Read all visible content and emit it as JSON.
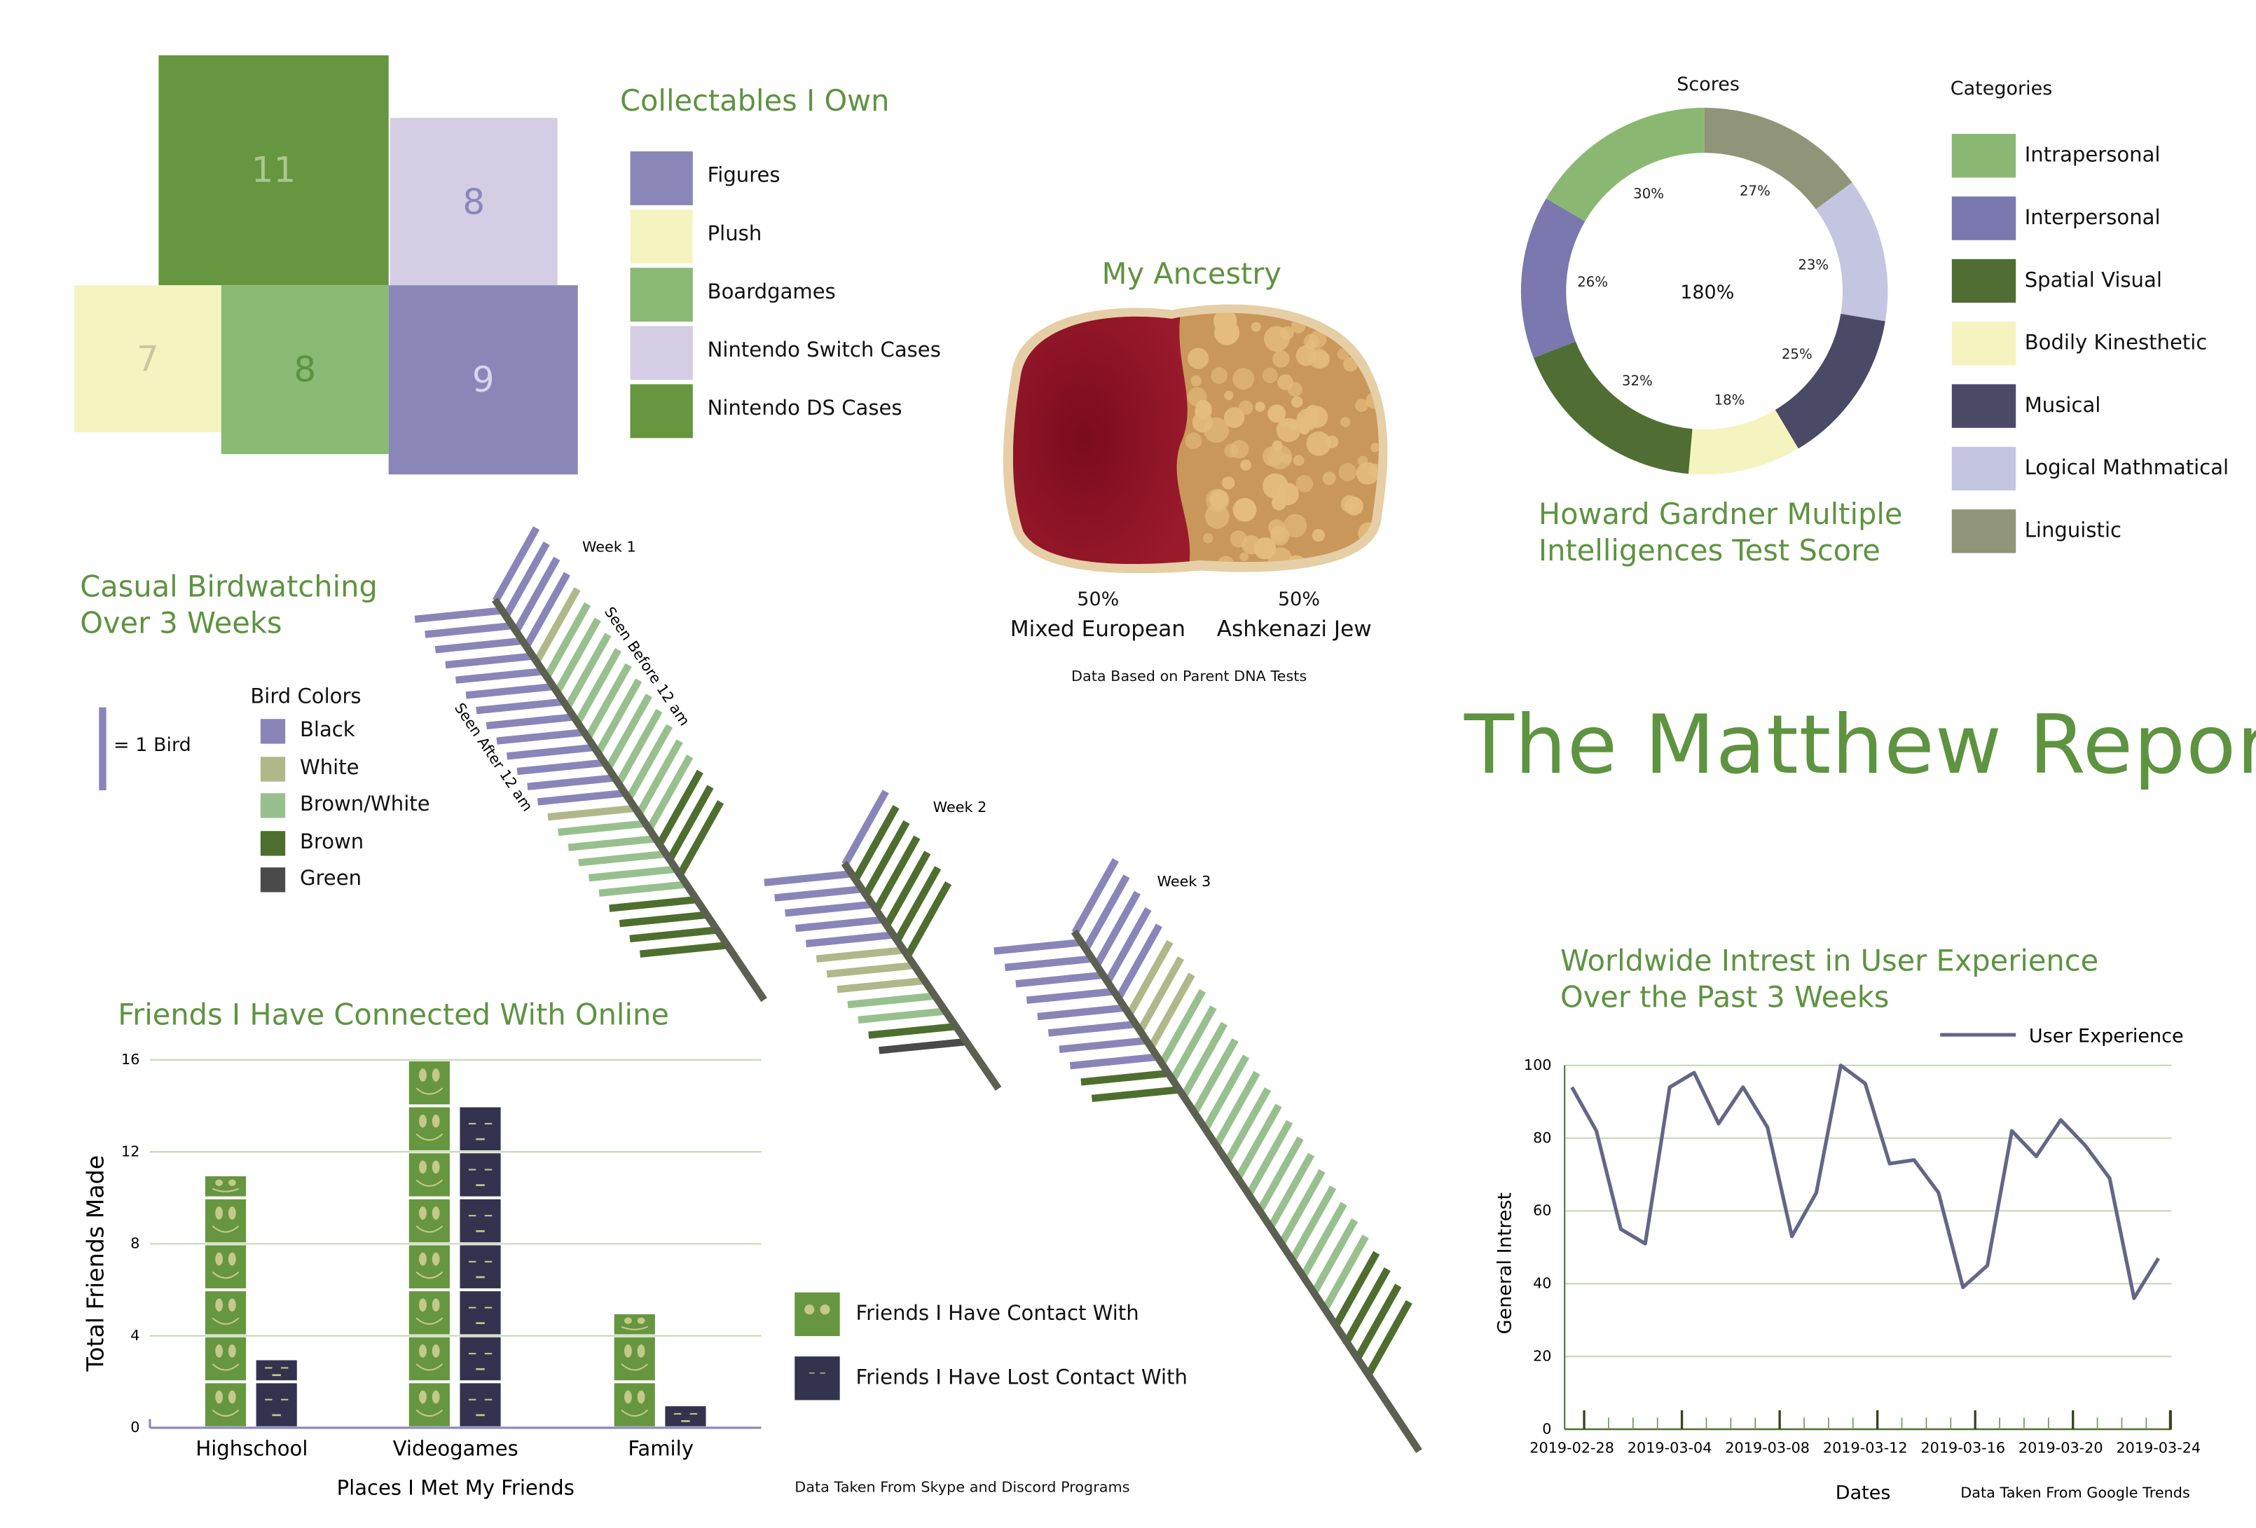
{
  "report_title": "The Matthew Report",
  "chart_data": [
    {
      "type": "treemap",
      "title": "Collectables I Own",
      "items": [
        {
          "label": "Figures",
          "value": 9,
          "color": "#8a87b8",
          "text_color": "#d6d6ee"
        },
        {
          "label": "Plush",
          "value": 7,
          "color": "#f5f4c0",
          "text_color": "#c9c79f"
        },
        {
          "label": "Boardgames",
          "value": 8,
          "color": "#8aba73",
          "text_color": "#5c9240"
        },
        {
          "label": "Nintendo Switch Cases",
          "value": 8,
          "color": "#d5cde3",
          "text_color": "#8a87b8"
        },
        {
          "label": "Nintendo DS Cases",
          "value": 11,
          "color": "#66963f",
          "text_color": "#a9c98f"
        }
      ]
    },
    {
      "type": "image-split",
      "title": "My Ancestry",
      "items": [
        {
          "percent": "50%",
          "label": "Mixed European"
        },
        {
          "percent": "50%",
          "label": "Ashkenazi Jew"
        }
      ],
      "note": "Data Based on Parent DNA Tests"
    },
    {
      "type": "pie",
      "title": "Howard Gardner Multiple Intelligences Test Score",
      "series_title": "Scores",
      "legend_title": "Categories",
      "center_label": "180%",
      "legend": [
        {
          "label": "Intrapersonal",
          "color": "#8ab873"
        },
        {
          "label": "Interpersonal",
          "color": "#7a78ae"
        },
        {
          "label": "Spatial Visual",
          "color": "#506e33"
        },
        {
          "label": "Bodily Kinesthetic",
          "color": "#f5f4c0"
        },
        {
          "label": "Musical",
          "color": "#4a4a66"
        },
        {
          "label": "Logical Mathmatical",
          "color": "#c4c5e1"
        },
        {
          "label": "Linguistic",
          "color": "#909478"
        }
      ],
      "slices_clockwise_from_top": [
        {
          "category": "Linguistic",
          "value": 27,
          "label": "27%"
        },
        {
          "category": "Logical Mathmatical",
          "value": 23,
          "label": "23%"
        },
        {
          "category": "Musical",
          "value": 25,
          "label": "25%"
        },
        {
          "category": "Bodily Kinesthetic",
          "value": 18,
          "label": "18%"
        },
        {
          "category": "Spatial Visual",
          "value": 32,
          "label": "32%"
        },
        {
          "category": "Interpersonal",
          "value": 26,
          "label": "26%"
        },
        {
          "category": "Intrapersonal",
          "value": 30,
          "label": "30%"
        }
      ]
    },
    {
      "type": "tally",
      "title": "Casual Birdwatching Over 3 Weeks",
      "title_lines": [
        "Casual Birdwatching",
        "Over 3 Weeks"
      ],
      "unit_label": "= 1 Bird",
      "legend_title": "Bird Colors",
      "legend": [
        {
          "label": "Black",
          "color": "#8a85b8"
        },
        {
          "label": "White",
          "color": "#b0b88a"
        },
        {
          "label": "Brown/White",
          "color": "#98c08e"
        },
        {
          "label": "Brown",
          "color": "#4e6e30"
        },
        {
          "label": "Green",
          "color": "#4a4a4a"
        }
      ],
      "side_labels": {
        "before": "Seen Before 12 am",
        "after": "Seen After 12 am"
      },
      "weeks": [
        {
          "label": "Week 1",
          "before": [
            [
              "Black",
              4
            ],
            [
              "White",
              1
            ],
            [
              "Brown/White",
              11
            ],
            [
              "Brown",
              3
            ]
          ],
          "after": [
            [
              "Black",
              13
            ],
            [
              "White",
              1
            ],
            [
              "Brown/White",
              5
            ],
            [
              "Brown",
              4
            ]
          ]
        },
        {
          "label": "Week 2",
          "before": [
            [
              "Black",
              1
            ],
            [
              "Brown",
              6
            ]
          ],
          "after": [
            [
              "Black",
              5
            ],
            [
              "White",
              3
            ],
            [
              "Brown/White",
              2
            ],
            [
              "Brown",
              1
            ],
            [
              "Green",
              1
            ]
          ]
        },
        {
          "label": "Week 3",
          "before": [
            [
              "Black",
              5
            ],
            [
              "White",
              3
            ],
            [
              "Brown/White",
              16
            ],
            [
              "Brown",
              4
            ]
          ],
          "after": [
            [
              "Black",
              8
            ],
            [
              "Brown",
              2
            ]
          ]
        }
      ]
    },
    {
      "type": "bar",
      "title": "Friends I Have Connected With Online",
      "xlabel": "Places I Met My Friends",
      "ylabel": "Total Friends Made",
      "ylim": [
        0,
        16
      ],
      "yticks": [
        "0",
        "4",
        "8",
        "12",
        "16"
      ],
      "categories": [
        "Highschool",
        "Videogames",
        "Family"
      ],
      "series": [
        {
          "name": "Friends I Have Contact With",
          "values": [
            11,
            16,
            5
          ],
          "color": "#66963f"
        },
        {
          "name": "Friends I Have Lost Contact With",
          "values": [
            3,
            14,
            1
          ],
          "color": "#33334f"
        }
      ],
      "grid": true,
      "note": "Data Taken From Skype and Discord Programs"
    },
    {
      "type": "line",
      "title": "Worldwide Intrest in User Experience Over the Past 3 Weeks",
      "title_lines": [
        "Worldwide Intrest in User Experience",
        "Over the Past 3 Weeks"
      ],
      "xlabel": "Dates",
      "ylabel": "General Intrest",
      "ylim": [
        0,
        100
      ],
      "yticks": [
        "0",
        "20",
        "40",
        "60",
        "80",
        "100"
      ],
      "xtick_labels": [
        "2019-02-28",
        "2019-03-04",
        "2019-03-08",
        "2019-03-12",
        "2019-03-16",
        "2019-03-20",
        "2019-03-24"
      ],
      "x_start": "2019-02-28",
      "x_end": "2019-03-24",
      "series": [
        {
          "name": "User Experience",
          "color": "#646688",
          "values": [
            94,
            82,
            55,
            51,
            94,
            98,
            84,
            94,
            83,
            53,
            65,
            100,
            95,
            73,
            74,
            65,
            39,
            45,
            82,
            75,
            85,
            78,
            69,
            36,
            47
          ]
        }
      ],
      "grid": true,
      "legend_position": "top-right",
      "note": "Data Taken From Google Trends"
    }
  ]
}
